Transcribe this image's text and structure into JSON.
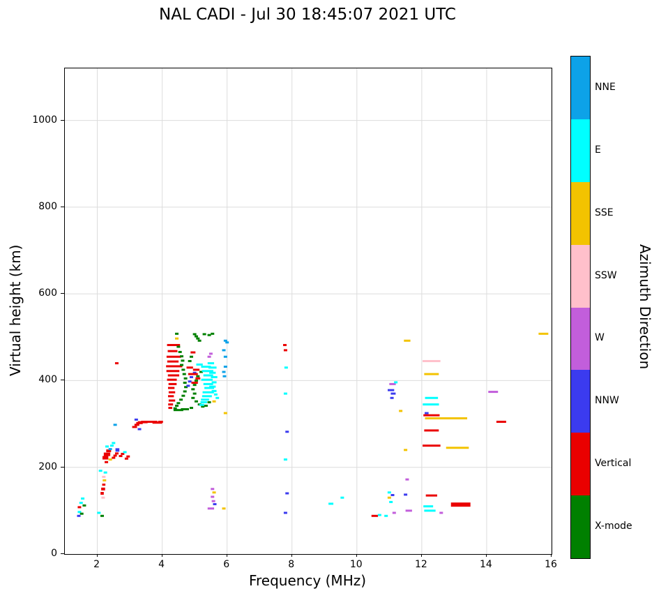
{
  "title": "NAL CADI - Jul 30 18:45:07 2021 UTC",
  "chart_data": {
    "type": "scatter",
    "title": "NAL CADI - Jul 30 18:45:07 2021 UTC",
    "xlabel": "Frequency (MHz)",
    "ylabel": "Virtual height (km)",
    "xlim": [
      1,
      16
    ],
    "ylim": [
      0,
      1120
    ],
    "xticks": [
      2,
      4,
      6,
      8,
      10,
      12,
      14,
      16
    ],
    "yticks": [
      0,
      200,
      400,
      600,
      800,
      1000
    ],
    "grid": true,
    "grid_color": "#dcdcdc",
    "marker": "horizontal-dash",
    "legend": {
      "label": "Azimuth Direction",
      "position": "right-colorbar",
      "entries": [
        {
          "name": "NNE",
          "color": "#0DA2E8"
        },
        {
          "name": "E",
          "color": "#00FFFF"
        },
        {
          "name": "SSE",
          "color": "#F3C300"
        },
        {
          "name": "SSW",
          "color": "#FFC0CB"
        },
        {
          "name": "W",
          "color": "#C25EDB"
        },
        {
          "name": "NNW",
          "color": "#3B3BEF"
        },
        {
          "name": "Vertical",
          "color": "#EA0000"
        },
        {
          "name": "X-mode",
          "color": "#008000"
        }
      ]
    },
    "points": [
      [
        1.43,
        88,
        "NNW"
      ],
      [
        1.45,
        108,
        "Vertical"
      ],
      [
        1.45,
        97,
        "E"
      ],
      [
        1.5,
        118,
        "E"
      ],
      [
        1.52,
        93,
        "X-mode"
      ],
      [
        1.55,
        128,
        "E"
      ],
      [
        1.6,
        112,
        "X-mode"
      ],
      [
        2.05,
        95,
        "E"
      ],
      [
        2.15,
        88,
        "X-mode"
      ],
      [
        2.15,
        140,
        "Vertical",
        0.1,
        4
      ],
      [
        2.18,
        150,
        "Vertical",
        0.12,
        4
      ],
      [
        2.2,
        160,
        "Vertical",
        0.1
      ],
      [
        2.22,
        170,
        "SSE"
      ],
      [
        2.18,
        130,
        "SSW"
      ],
      [
        2.2,
        178,
        "SSW"
      ],
      [
        2.25,
        188,
        "E"
      ],
      [
        2.1,
        192,
        "E"
      ],
      [
        2.25,
        222,
        "Vertical",
        0.18,
        5
      ],
      [
        2.3,
        230,
        "Vertical",
        0.2,
        5
      ],
      [
        2.35,
        238,
        "Vertical",
        0.15,
        4
      ],
      [
        2.28,
        212,
        "Vertical"
      ],
      [
        2.4,
        242,
        "NNE"
      ],
      [
        2.45,
        250,
        "E"
      ],
      [
        2.5,
        256,
        "E"
      ],
      [
        2.3,
        248,
        "E"
      ],
      [
        2.4,
        218,
        "SSE"
      ],
      [
        2.5,
        222,
        "Vertical"
      ],
      [
        2.55,
        227,
        "Vertical"
      ],
      [
        2.6,
        232,
        "Vertical"
      ],
      [
        2.62,
        240,
        "NNW",
        0.12,
        5
      ],
      [
        2.55,
        298,
        "NNE"
      ],
      [
        2.6,
        440,
        "Vertical"
      ],
      [
        2.72,
        226,
        "Vertical"
      ],
      [
        2.78,
        231,
        "Vertical"
      ],
      [
        2.85,
        235,
        "E"
      ],
      [
        2.9,
        220,
        "Vertical"
      ],
      [
        2.95,
        225,
        "Vertical"
      ],
      [
        3.15,
        293,
        "Vertical",
        0.15
      ],
      [
        3.22,
        298,
        "Vertical",
        0.15
      ],
      [
        3.2,
        310,
        "NNW"
      ],
      [
        3.3,
        288,
        "NNW"
      ],
      [
        3.3,
        302,
        "Vertical",
        0.2
      ],
      [
        3.4,
        304,
        "Vertical",
        0.3
      ],
      [
        3.6,
        305,
        "Vertical",
        0.5
      ],
      [
        3.85,
        303,
        "Vertical",
        0.3
      ],
      [
        3.95,
        305,
        "Vertical",
        0.15
      ],
      [
        4.25,
        337,
        "Vertical",
        0.12
      ],
      [
        4.26,
        345,
        "Vertical",
        0.15
      ],
      [
        4.3,
        354,
        "Vertical",
        0.2
      ],
      [
        4.27,
        364,
        "Vertical",
        0.18
      ],
      [
        4.3,
        373,
        "Vertical",
        0.2
      ],
      [
        4.28,
        383,
        "Vertical",
        0.2
      ],
      [
        4.32,
        392,
        "Vertical",
        0.25
      ],
      [
        4.3,
        402,
        "Vertical",
        0.3
      ],
      [
        4.35,
        412,
        "Vertical",
        0.35
      ],
      [
        4.33,
        422,
        "Vertical",
        0.4
      ],
      [
        4.37,
        433,
        "Vertical",
        0.5
      ],
      [
        4.33,
        444,
        "Vertical",
        0.35
      ],
      [
        4.36,
        455,
        "Vertical",
        0.45
      ],
      [
        4.32,
        468,
        "Vertical",
        0.3
      ],
      [
        4.35,
        482,
        "Vertical",
        0.4
      ],
      [
        4.45,
        497,
        "SSE"
      ],
      [
        4.45,
        508,
        "X-mode"
      ],
      [
        4.4,
        336,
        "X-mode"
      ],
      [
        4.45,
        342,
        "X-mode"
      ],
      [
        4.5,
        348,
        "X-mode"
      ],
      [
        4.58,
        356,
        "X-mode"
      ],
      [
        4.65,
        365,
        "X-mode"
      ],
      [
        4.7,
        375,
        "X-mode"
      ],
      [
        4.73,
        385,
        "X-mode"
      ],
      [
        4.7,
        395,
        "X-mode"
      ],
      [
        4.72,
        405,
        "X-mode"
      ],
      [
        4.68,
        415,
        "X-mode"
      ],
      [
        4.65,
        425,
        "X-mode"
      ],
      [
        4.6,
        436,
        "X-mode"
      ],
      [
        4.63,
        446,
        "X-mode"
      ],
      [
        4.6,
        456,
        "X-mode"
      ],
      [
        4.55,
        466,
        "X-mode"
      ],
      [
        4.5,
        478,
        "X-mode"
      ],
      [
        4.5,
        332,
        "X-mode",
        0.3
      ],
      [
        4.7,
        334,
        "X-mode",
        0.25
      ],
      [
        4.9,
        337,
        "X-mode"
      ],
      [
        4.85,
        445,
        "X-mode"
      ],
      [
        4.9,
        455,
        "X-mode"
      ],
      [
        4.95,
        465,
        "Vertical",
        0.15
      ],
      [
        4.85,
        430,
        "Vertical",
        0.2
      ],
      [
        4.8,
        388,
        "NNW"
      ],
      [
        4.85,
        398,
        "NNW"
      ],
      [
        4.9,
        408,
        "NNW"
      ],
      [
        5.0,
        418,
        "NNW"
      ],
      [
        4.95,
        380,
        "X-mode"
      ],
      [
        5.0,
        390,
        "X-mode"
      ],
      [
        5.05,
        400,
        "X-mode"
      ],
      [
        5.1,
        410,
        "X-mode"
      ],
      [
        5.2,
        420,
        "X-mode"
      ],
      [
        5.0,
        370,
        "X-mode"
      ],
      [
        4.95,
        360,
        "X-mode"
      ],
      [
        5.05,
        352,
        "X-mode"
      ],
      [
        5.15,
        345,
        "X-mode"
      ],
      [
        5.25,
        340,
        "X-mode"
      ],
      [
        5.35,
        342,
        "X-mode"
      ],
      [
        5.45,
        350,
        "X-mode"
      ],
      [
        5.0,
        507,
        "X-mode"
      ],
      [
        5.05,
        502,
        "X-mode"
      ],
      [
        5.1,
        497,
        "X-mode"
      ],
      [
        5.15,
        492,
        "X-mode"
      ],
      [
        5.3,
        507,
        "X-mode"
      ],
      [
        5.45,
        505,
        "X-mode"
      ],
      [
        5.55,
        508,
        "X-mode"
      ],
      [
        5.0,
        395,
        "Vertical",
        0.2
      ],
      [
        5.1,
        405,
        "Vertical",
        0.15
      ],
      [
        4.95,
        415,
        "Vertical",
        0.3
      ],
      [
        5.05,
        425,
        "Vertical",
        0.2
      ],
      [
        5.15,
        437,
        "E",
        0.2
      ],
      [
        5.22,
        344,
        "E",
        0.15
      ],
      [
        5.28,
        350,
        "E",
        0.2
      ],
      [
        5.32,
        356,
        "E",
        0.25
      ],
      [
        5.38,
        364,
        "E",
        0.3
      ],
      [
        5.42,
        373,
        "E",
        0.35
      ],
      [
        5.45,
        383,
        "E",
        0.3
      ],
      [
        5.42,
        392,
        "E",
        0.3
      ],
      [
        5.38,
        402,
        "E",
        0.35
      ],
      [
        5.42,
        412,
        "E",
        0.3
      ],
      [
        5.4,
        422,
        "E",
        0.35
      ],
      [
        5.35,
        432,
        "E",
        0.3
      ],
      [
        5.5,
        440,
        "E",
        0.2
      ],
      [
        5.55,
        430,
        "E",
        0.25
      ],
      [
        5.55,
        418,
        "E",
        0.2
      ],
      [
        5.6,
        408,
        "E",
        0.2
      ],
      [
        5.6,
        396,
        "E",
        0.15
      ],
      [
        5.55,
        386,
        "E",
        0.2
      ],
      [
        5.6,
        376,
        "E",
        0.15
      ],
      [
        5.65,
        368,
        "E"
      ],
      [
        5.7,
        360,
        "E"
      ],
      [
        5.6,
        352,
        "SSE"
      ],
      [
        5.5,
        462,
        "W"
      ],
      [
        5.45,
        455,
        "W"
      ],
      [
        5.9,
        470,
        "NNE"
      ],
      [
        5.95,
        492,
        "NNE"
      ],
      [
        5.95,
        455,
        "NNE"
      ],
      [
        5.95,
        432,
        "NNE"
      ],
      [
        5.9,
        420,
        "NNE"
      ],
      [
        5.92,
        410,
        "NNE"
      ],
      [
        6.0,
        488,
        "NNE"
      ],
      [
        5.95,
        325,
        "SSE"
      ],
      [
        5.5,
        105,
        "W",
        0.2
      ],
      [
        5.55,
        150,
        "W"
      ],
      [
        5.6,
        142,
        "SSE"
      ],
      [
        5.55,
        132,
        "W"
      ],
      [
        5.58,
        122,
        "W"
      ],
      [
        5.62,
        115,
        "NNW"
      ],
      [
        5.9,
        105,
        "SSE"
      ],
      [
        7.78,
        482,
        "Vertical"
      ],
      [
        7.8,
        470,
        "Vertical"
      ],
      [
        7.82,
        430,
        "E"
      ],
      [
        7.8,
        370,
        "E"
      ],
      [
        7.85,
        282,
        "NNW"
      ],
      [
        7.8,
        218,
        "E"
      ],
      [
        7.85,
        140,
        "NNW"
      ],
      [
        7.8,
        95,
        "NNW"
      ],
      [
        9.2,
        116,
        "E",
        0.15
      ],
      [
        9.55,
        130,
        "E"
      ],
      [
        10.55,
        88,
        "Vertical",
        0.2
      ],
      [
        10.7,
        90,
        "E"
      ],
      [
        10.9,
        88,
        "E"
      ],
      [
        11.0,
        142,
        "E"
      ],
      [
        11.0,
        130,
        "SSE"
      ],
      [
        11.05,
        120,
        "E"
      ],
      [
        11.1,
        136,
        "NNW"
      ],
      [
        11.15,
        95,
        "W"
      ],
      [
        11.5,
        137,
        "NNW"
      ],
      [
        11.55,
        172,
        "W"
      ],
      [
        11.5,
        240,
        "SSE"
      ],
      [
        11.55,
        492,
        "SSE",
        0.2
      ],
      [
        11.08,
        360,
        "NNW"
      ],
      [
        11.05,
        378,
        "NNW",
        0.2
      ],
      [
        11.12,
        370,
        "NNW",
        0.15
      ],
      [
        11.1,
        392,
        "W",
        0.2
      ],
      [
        11.2,
        396,
        "E"
      ],
      [
        11.35,
        330,
        "SSE"
      ],
      [
        11.6,
        100,
        "W",
        0.2
      ],
      [
        12.3,
        445,
        "SSW",
        0.55
      ],
      [
        12.3,
        415,
        "SSE",
        0.45
      ],
      [
        12.3,
        360,
        "E",
        0.4
      ],
      [
        12.28,
        345,
        "E",
        0.5
      ],
      [
        12.15,
        325,
        "NNW",
        0.12
      ],
      [
        12.3,
        320,
        "Vertical",
        0.5
      ],
      [
        12.75,
        313,
        "SSE",
        1.3
      ],
      [
        12.3,
        285,
        "Vertical",
        0.45
      ],
      [
        12.3,
        250,
        "Vertical",
        0.55
      ],
      [
        13.1,
        245,
        "SSE",
        0.7
      ],
      [
        12.3,
        135,
        "Vertical",
        0.35
      ],
      [
        12.2,
        110,
        "E",
        0.3
      ],
      [
        12.25,
        100,
        "E",
        0.35
      ],
      [
        13.2,
        114,
        "Vertical",
        0.6,
        6
      ],
      [
        12.6,
        95,
        "W"
      ],
      [
        14.2,
        374,
        "W",
        0.3
      ],
      [
        14.45,
        305,
        "Vertical",
        0.3
      ],
      [
        15.75,
        508,
        "SSE",
        0.3
      ]
    ]
  }
}
